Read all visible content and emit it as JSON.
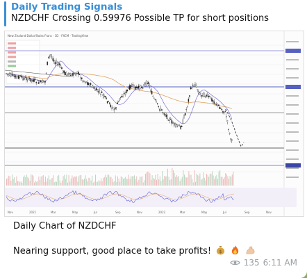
{
  "post": {
    "channel_name": "Daily Trading Signals",
    "reply_text": "NZDCHF Crossing 0.59976 Possible TP for short positions",
    "caption_title": "Daily Chart of NZDCHF",
    "caption_body": "Nearing support, good place to take profits!",
    "emoji": [
      "money-bag-icon",
      "fire-icon",
      "flexed-biceps-icon"
    ],
    "views": "135",
    "time": "6:11 AM"
  },
  "chart": {
    "symbol_title": "New Zealand Dollar/Swiss Franc · 1D · FXCM · TradingView",
    "x_ticks": [
      "Nov",
      "2021",
      "Mar",
      "May",
      "Jul",
      "Sep",
      "Nov",
      "2022",
      "Mar",
      "May",
      "Jul",
      "Sep",
      "Nov"
    ]
  },
  "colors": {
    "channel": "#3a8fd6",
    "background": "#8fa872",
    "price_line": "#222222",
    "ma_fast": "#7c6fd6",
    "ma_slow": "#e2a35c",
    "rsi": "#5b5fd6"
  }
}
